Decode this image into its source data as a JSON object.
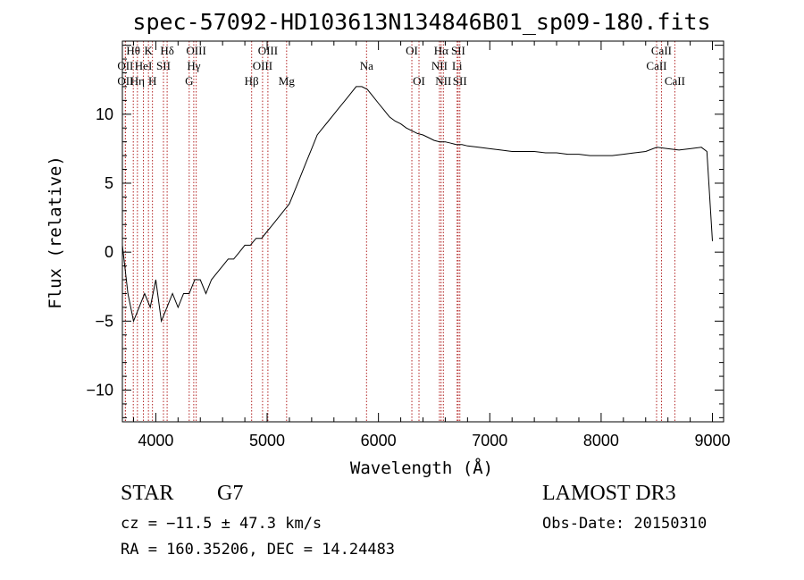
{
  "chart_data": {
    "type": "line",
    "title": "spec-57092-HD103613N134846B01_sp09-180.fits",
    "xlabel": "Wavelength (Å)",
    "ylabel": "Flux (relative)",
    "xlim": [
      3700,
      9100
    ],
    "ylim": [
      -12.3,
      15.3
    ],
    "x_ticks": [
      4000,
      5000,
      6000,
      7000,
      8000,
      9000
    ],
    "y_ticks": [
      -10,
      -5,
      0,
      5,
      10
    ],
    "grid": false,
    "legend": "none",
    "series": [
      {
        "x": [
          3700,
          3750,
          3800,
          3850,
          3900,
          3950,
          4000,
          4050,
          4100,
          4150,
          4200,
          4250,
          4300,
          4350,
          4400,
          4450,
          4500,
          4550,
          4600,
          4650,
          4700,
          4750,
          4800,
          4850,
          4900,
          4950,
          5000,
          5050,
          5100,
          5150,
          5200,
          5250,
          5300,
          5350,
          5400,
          5450,
          5500,
          5550,
          5600,
          5650,
          5700,
          5750,
          5800,
          5850,
          5900,
          5950,
          6000,
          6050,
          6100,
          6150,
          6200,
          6250,
          6300,
          6350,
          6400,
          6450,
          6500,
          6550,
          6600,
          6650,
          6700,
          6750,
          6800,
          6900,
          7000,
          7100,
          7200,
          7300,
          7400,
          7500,
          7600,
          7700,
          7800,
          7900,
          8000,
          8100,
          8200,
          8300,
          8400,
          8500,
          8600,
          8700,
          8800,
          8900,
          8950,
          9000
        ],
        "y": [
          0.5,
          -3,
          -5,
          -4,
          -3,
          -4,
          -2,
          -5,
          -4,
          -3,
          -4,
          -3,
          -3,
          -2,
          -2,
          -3,
          -2,
          -1.5,
          -1,
          -0.5,
          -0.5,
          0,
          0.5,
          0.5,
          1,
          1,
          1.5,
          2,
          2.5,
          3,
          3.5,
          4.5,
          5.5,
          6.5,
          7.5,
          8.5,
          9,
          9.5,
          10,
          10.5,
          11,
          11.5,
          12,
          12,
          11.8,
          11.3,
          10.8,
          10.3,
          9.8,
          9.5,
          9.3,
          9,
          8.8,
          8.6,
          8.5,
          8.3,
          8.1,
          8,
          8,
          7.9,
          7.8,
          7.8,
          7.7,
          7.6,
          7.5,
          7.4,
          7.3,
          7.3,
          7.3,
          7.2,
          7.2,
          7.1,
          7.1,
          7.0,
          7.0,
          7.0,
          7.1,
          7.2,
          7.3,
          7.6,
          7.5,
          7.4,
          7.5,
          7.6,
          7.3,
          0.8
        ]
      }
    ],
    "line_markers": [
      {
        "wl": 3798,
        "label": "Hθ",
        "row": 0
      },
      {
        "wl": 3727,
        "label": "OII",
        "row": 1
      },
      {
        "wl": 3727,
        "label": "OII",
        "row": 2
      },
      {
        "wl": 3889,
        "label": "HeI",
        "row": 1
      },
      {
        "wl": 3835,
        "label": "Hη",
        "row": 2
      },
      {
        "wl": 3934,
        "label": "K",
        "row": 0
      },
      {
        "wl": 3970,
        "label": "H",
        "row": 2
      },
      {
        "wl": 4069,
        "label": "SII",
        "row": 1
      },
      {
        "wl": 4102,
        "label": "Hδ",
        "row": 0
      },
      {
        "wl": 4300,
        "label": "G",
        "row": 2
      },
      {
        "wl": 4341,
        "label": "Hγ",
        "row": 1
      },
      {
        "wl": 4363,
        "label": "OIII",
        "row": 0
      },
      {
        "wl": 4861,
        "label": "Hβ",
        "row": 2
      },
      {
        "wl": 4959,
        "label": "OIII",
        "row": 1
      },
      {
        "wl": 5007,
        "label": "OIII",
        "row": 0
      },
      {
        "wl": 5175,
        "label": "Mg",
        "row": 2
      },
      {
        "wl": 5893,
        "label": "Na",
        "row": 1
      },
      {
        "wl": 6300,
        "label": "OI",
        "row": 0
      },
      {
        "wl": 6364,
        "label": "OI",
        "row": 2
      },
      {
        "wl": 6548,
        "label": "NII",
        "row": 1
      },
      {
        "wl": 6563,
        "label": "Hα",
        "row": 0
      },
      {
        "wl": 6583,
        "label": "NII",
        "row": 2
      },
      {
        "wl": 6707,
        "label": "Li",
        "row": 1
      },
      {
        "wl": 6716,
        "label": "SII",
        "row": 0
      },
      {
        "wl": 6731,
        "label": "SII",
        "row": 2
      },
      {
        "wl": 8498,
        "label": "CaII",
        "row": 1
      },
      {
        "wl": 8542,
        "label": "CaII",
        "row": 0
      },
      {
        "wl": 8662,
        "label": "CaII",
        "row": 2
      }
    ]
  },
  "info": {
    "object_class": "STAR",
    "subclass": "G7",
    "survey": "LAMOST DR3",
    "redshift": "cz = −11.5 ± 47.3 km/s",
    "obs_date": "Obs-Date: 20150310",
    "coords": "RA = 160.35206, DEC =  14.24483"
  },
  "colors": {
    "spectrum": "#000000",
    "line_marker": "#b22222",
    "axes": "#000000"
  }
}
